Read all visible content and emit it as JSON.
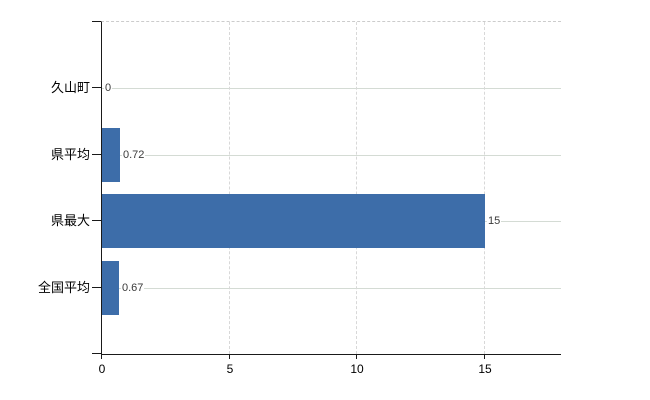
{
  "chart_data": {
    "type": "bar",
    "orientation": "horizontal",
    "categories": [
      "久山町",
      "県平均",
      "県最大",
      "全国平均"
    ],
    "values": [
      0,
      0.72,
      15,
      0.67
    ],
    "value_labels": [
      "0",
      "0.72",
      "15",
      "0.67"
    ],
    "x_ticks": [
      0,
      5,
      10,
      15
    ],
    "x_tick_labels": [
      "0",
      "5",
      "10",
      "15"
    ],
    "xlim": [
      0,
      18
    ],
    "title": "",
    "xlabel": "",
    "ylabel": "",
    "legend": "none",
    "grid": {
      "horizontal": "solid-light",
      "vertical": "dashed-light",
      "top_border": "dashed-light"
    },
    "colors": {
      "bar": "#3d6da9",
      "hgrid": "#d4dbd4",
      "vgrid": "#d8d8d8",
      "axis": "#1a1a1a",
      "value_text": "#3a3a3a",
      "label_text": "#000000",
      "background": "#ffffff"
    }
  }
}
